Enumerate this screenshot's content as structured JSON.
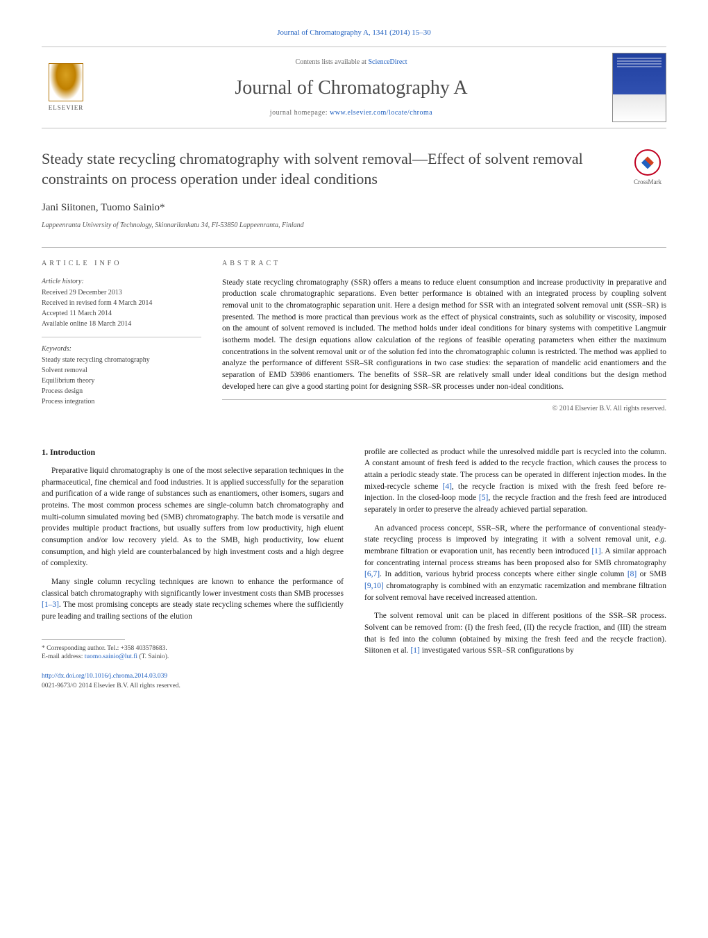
{
  "colors": {
    "link": "#2060c0",
    "text": "#1a1a1a",
    "muted": "#555555",
    "rule": "#c0c0c0",
    "crossmark_ring": "#c00020",
    "elsevier_accent": "#c08000",
    "cover_blue": "#2040a0"
  },
  "typography": {
    "body_family": "Georgia, 'Times New Roman', serif",
    "title_size_pt": 22,
    "journal_size_pt": 28,
    "body_size_pt": 11.5,
    "meta_size_pt": 10,
    "caption_size_pt": 9.5
  },
  "header": {
    "citation": "Journal of Chromatography A, 1341 (2014) 15–30",
    "contents_prefix": "Contents lists available at ",
    "contents_link": "ScienceDirect",
    "journal_name": "Journal of Chromatography A",
    "homepage_prefix": "journal homepage: ",
    "homepage_url": "www.elsevier.com/locate/chroma",
    "publisher_logo_label": "ELSEVIER"
  },
  "crossmark_label": "CrossMark",
  "article": {
    "title": "Steady state recycling chromatography with solvent removal—Effect of solvent removal constraints on process operation under ideal conditions",
    "authors": "Jani Siitonen, Tuomo Sainio",
    "corr_marker": "*",
    "affiliation": "Lappeenranta University of Technology, Skinnarilankatu 34, FI-53850 Lappeenranta, Finland"
  },
  "article_info": {
    "heading": "ARTICLE INFO",
    "history_label": "Article history:",
    "history": [
      "Received 29 December 2013",
      "Received in revised form 4 March 2014",
      "Accepted 11 March 2014",
      "Available online 18 March 2014"
    ],
    "keywords_label": "Keywords:",
    "keywords": [
      "Steady state recycling chromatography",
      "Solvent removal",
      "Equilibrium theory",
      "Process design",
      "Process integration"
    ]
  },
  "abstract": {
    "heading": "ABSTRACT",
    "text": "Steady state recycling chromatography (SSR) offers a means to reduce eluent consumption and increase productivity in preparative and production scale chromatographic separations. Even better performance is obtained with an integrated process by coupling solvent removal unit to the chromatographic separation unit. Here a design method for SSR with an integrated solvent removal unit (SSR–SR) is presented. The method is more practical than previous work as the effect of physical constraints, such as solubility or viscosity, imposed on the amount of solvent removed is included. The method holds under ideal conditions for binary systems with competitive Langmuir isotherm model. The design equations allow calculation of the regions of feasible operating parameters when either the maximum concentrations in the solvent removal unit or of the solution fed into the chromatographic column is restricted. The method was applied to analyze the performance of different SSR–SR configurations in two case studies: the separation of mandelic acid enantiomers and the separation of EMD 53986 enantiomers. The benefits of SSR–SR are relatively small under ideal conditions but the design method developed here can give a good starting point for designing SSR–SR processes under non-ideal conditions.",
    "copyright": "© 2014 Elsevier B.V. All rights reserved."
  },
  "body": {
    "intro_heading": "1.  Introduction",
    "left_paragraphs": [
      "Preparative liquid chromatography is one of the most selective separation techniques in the pharmaceutical, fine chemical and food industries. It is applied successfully for the separation and purification of a wide range of substances such as enantiomers, other isomers, sugars and proteins. The most common process schemes are single-column batch chromatography and multi-column simulated moving bed (SMB) chromatography. The batch mode is versatile and provides multiple product fractions, but usually suffers from low productivity, high eluent consumption and/or low recovery yield. As to the SMB, high productivity, low eluent consumption, and high yield are counterbalanced by high investment costs and a high degree of complexity.",
      "Many single column recycling techniques are known to enhance the performance of classical batch chromatography with significantly lower investment costs than SMB processes [1–3]. The most promising concepts are steady state recycling schemes where the sufficiently pure leading and trailing sections of the elution"
    ],
    "right_paragraphs": [
      "profile are collected as product while the unresolved middle part is recycled into the column. A constant amount of fresh feed is added to the recycle fraction, which causes the process to attain a periodic steady state. The process can be operated in different injection modes. In the mixed-recycle scheme [4], the recycle fraction is mixed with the fresh feed before re-injection. In the closed-loop mode [5], the recycle fraction and the fresh feed are introduced separately in order to preserve the already achieved partial separation.",
      "An advanced process concept, SSR–SR, where the performance of conventional steady-state recycling process is improved by integrating it with a solvent removal unit, e.g. membrane filtration or evaporation unit, has recently been introduced [1]. A similar approach for concentrating internal process streams has been proposed also for SMB chromatography [6,7]. In addition, various hybrid process concepts where either single column [8] or SMB [9,10] chromatography is combined with an enzymatic racemization and membrane filtration for solvent removal have received increased attention.",
      "The solvent removal unit can be placed in different positions of the SSR–SR process. Solvent can be removed from: (I) the fresh feed, (II) the recycle fraction, and (III) the stream that is fed into the column (obtained by mixing the fresh feed and the recycle fraction). Siitonen et al. [1] investigated various SSR–SR configurations by"
    ],
    "ref_citations": {
      "left_p2": "[1–3]",
      "right_p1_a": "[4]",
      "right_p1_b": "[5]",
      "right_p2_a": "[1]",
      "right_p2_b": "[6,7]",
      "right_p2_c": "[8]",
      "right_p2_d": "[9,10]",
      "right_p3": "[1]"
    }
  },
  "footnote": {
    "corr_label": "* Corresponding author. Tel.: +358 403578683.",
    "email_label": "E-mail address: ",
    "email": "tuomo.sainio@lut.fi",
    "email_suffix": " (T. Sainio)."
  },
  "doi": {
    "url": "http://dx.doi.org/10.1016/j.chroma.2014.03.039",
    "issn_line": "0021-9673/© 2014 Elsevier B.V. All rights reserved."
  }
}
